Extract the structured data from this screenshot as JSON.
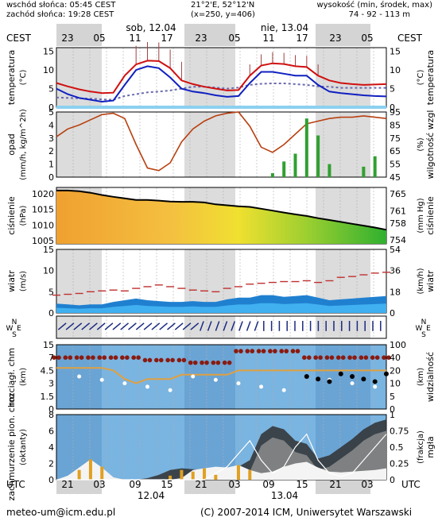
{
  "header": {
    "sunrise": "wschód słońca: 05:45 CEST",
    "sunset": "zachód słońca: 19:28 CEST",
    "coords": "21°2'E, 52°12'N",
    "grid": "(x=250, y=406)",
    "altitude_label": "wysokość (min, środek, max)",
    "altitude_values": "74 - 92 - 113 m"
  },
  "timebar": {
    "tz_left": "CEST",
    "tz_right": "CEST",
    "day1": "sob, 12.04",
    "day2": "nie, 13.04",
    "top_hours": [
      "23",
      "05",
      "11",
      "17",
      "23",
      "05",
      "11",
      "17",
      "23",
      "05"
    ],
    "bottom_tz": "UTC",
    "bottom_hours": [
      "21",
      "03",
      "09",
      "15",
      "21",
      "03",
      "09",
      "15",
      "21",
      "03"
    ],
    "bottom_day1": "12.04",
    "bottom_day2": "13.04"
  },
  "panels": {
    "temperature": {
      "label_left": "temperatura",
      "unit_left": "(°C)",
      "label_right": "temperatura",
      "unit_right": "(°C)"
    },
    "precip": {
      "label_left": "opad",
      "unit_left": "(mm/h, kg/m^2h)",
      "label_right": "wilgotność wzgl",
      "unit_right": "(%)"
    },
    "pressure": {
      "label_left": "ciśnienie",
      "unit_left": "(hPa)",
      "label_right": "ciśnienie",
      "unit_right": "(mm Hg)"
    },
    "wind": {
      "label_left": "wiatr",
      "unit_left": "(m/s)",
      "label_right": "wiatr",
      "unit_right": "(km/h)"
    },
    "direction": {
      "label_left": "W S N E",
      "label_right": "W S N E"
    },
    "visibility": {
      "label_left": "rozciągł. chm",
      "unit_left": "(km)",
      "label_right": "widzialność",
      "unit_right": "(km)"
    },
    "cloud": {
      "label_left": "zachmurzenie pion. chm",
      "unit_left": "(oktanty)",
      "label_right": "mgła",
      "unit_right": "(frakcja)"
    }
  },
  "footer": {
    "email": "meteo-um@icm.edu.pl",
    "copyright": "(C) 2007-2014 ICM, Uniwersytet Warszawski"
  },
  "chart_data": [
    {
      "type": "line",
      "title": "temperatura",
      "ylabel": "temperatura (°C)",
      "ylim": [
        0,
        16
      ],
      "yticks": [
        0,
        5,
        10,
        15
      ],
      "x_hours_utc": [
        19,
        21,
        23,
        1,
        3,
        5,
        7,
        9,
        11,
        13,
        15,
        17,
        19,
        21,
        23,
        1,
        3,
        5,
        7,
        9,
        11,
        13,
        15,
        17,
        19,
        21,
        23,
        1,
        3,
        5
      ],
      "series": [
        {
          "values": [
            6.5,
            5.6,
            4.8,
            4.2,
            3.8,
            3.9,
            8.5,
            11.5,
            12.5,
            12.4,
            10.5,
            7.2,
            6.2,
            5.5,
            5.0,
            4.5,
            4.6,
            8.5,
            11.2,
            11.8,
            11.6,
            11.0,
            10.8,
            8.5,
            7.2,
            6.5,
            6.2,
            6.0,
            6.1,
            6.2
          ],
          "color": "#d01010"
        },
        {
          "values": [
            5.0,
            3.5,
            2.5,
            2.0,
            1.5,
            1.8,
            6.0,
            10.0,
            11.0,
            10.5,
            8.0,
            5.0,
            4.2,
            3.8,
            3.2,
            2.8,
            3.0,
            6.5,
            9.5,
            9.5,
            9.0,
            8.5,
            8.5,
            6.0,
            4.2,
            3.8,
            3.5,
            3.2,
            3.0,
            2.9
          ],
          "color": "#1020c0"
        },
        {
          "values": [
            2.6,
            2.5,
            2.4,
            2.3,
            2.1,
            2.0,
            3.0,
            3.5,
            4.0,
            4.2,
            4.5,
            5.0,
            5.5,
            5.5,
            5.3,
            5.0,
            5.3,
            6.0,
            6.3,
            6.4,
            6.4,
            6.2,
            6.0,
            5.6,
            5.5,
            5.2,
            5.2,
            5.2,
            5.2,
            5.2
          ],
          "color": "#6a6ab0"
        }
      ]
    },
    {
      "type": "line",
      "title": "opad",
      "ylabel": "opad (mm/h, kg/m^2h)",
      "ylim": [
        0,
        5
      ],
      "yticks": [
        0,
        1,
        2,
        3,
        4,
        5
      ],
      "y2ticks": [
        45,
        55,
        65,
        75,
        85,
        95
      ],
      "series": [
        {
          "values": [
            76,
            82,
            85,
            89,
            93,
            94,
            90,
            70,
            52,
            50,
            56,
            72,
            82,
            88,
            92,
            94,
            95,
            84,
            68,
            64,
            70,
            78,
            86,
            88,
            90,
            91,
            91,
            92,
            91,
            90
          ],
          "color": "#b84010"
        }
      ]
    },
    {
      "type": "area",
      "title": "ciśnienie",
      "ylabel": "ciśnienie (hPa)",
      "ylim": [
        1004,
        1022
      ],
      "yticks": [
        1005,
        1010,
        1015,
        1020
      ],
      "y2ticks": [
        754,
        758,
        761,
        765
      ],
      "series": [
        {
          "values": [
            1021,
            1021,
            1020.8,
            1020.3,
            1019.6,
            1019,
            1018.5,
            1018,
            1018,
            1017.8,
            1017.5,
            1017.4,
            1017.4,
            1017.2,
            1016.6,
            1016.3,
            1016,
            1015.8,
            1015.2,
            1014.6,
            1014,
            1013.4,
            1012.9,
            1012.2,
            1011.6,
            1011,
            1010.4,
            1009.8,
            1009.2,
            1008.5
          ],
          "color": "#000000"
        }
      ]
    },
    {
      "type": "line",
      "title": "wiatr",
      "ylabel": "wiatr (m/s)",
      "ylim": [
        0,
        15
      ],
      "yticks": [
        0,
        5,
        10,
        15
      ],
      "y2ticks": [
        0,
        18,
        36,
        54
      ],
      "series": [
        {
          "values": [
            4.2,
            4.4,
            4.6,
            5.0,
            5.2,
            5.4,
            5.2,
            5.8,
            6.2,
            6.6,
            6.2,
            5.8,
            5.4,
            5.2,
            5.0,
            5.8,
            6.2,
            6.8,
            7.0,
            7.2,
            7.4,
            7.4,
            7.6,
            7.2,
            7.6,
            8.4,
            8.6,
            9.0,
            9.4,
            9.6
          ],
          "color": "#c03030"
        },
        {
          "values": [
            2.2,
            2.0,
            1.8,
            2.0,
            2.0,
            2.6,
            3.0,
            3.4,
            3.0,
            2.8,
            2.6,
            2.6,
            2.8,
            2.6,
            2.6,
            3.2,
            3.6,
            3.6,
            4.2,
            4.2,
            3.8,
            4.0,
            4.2,
            3.6,
            3.0,
            3.2,
            3.4,
            3.6,
            3.8,
            4.0
          ],
          "color": "#1060c0"
        }
      ]
    },
    {
      "type": "scatter",
      "title": "widzialność",
      "ylabel": "rozciągł. chm (km)",
      "ylim": [
        0,
        15
      ],
      "yticks": [
        0,
        1.5,
        3.0,
        4.5,
        7.0,
        15.0
      ],
      "y2ticks": [
        0,
        5,
        10,
        20,
        40,
        100
      ],
      "series": [
        {
          "values": [
            7,
            7,
            7,
            7,
            7,
            7,
            7,
            7,
            6.5,
            6.5,
            6.5,
            6.5,
            6,
            6,
            6,
            6,
            11,
            11,
            11,
            11,
            11,
            11,
            7,
            7,
            7,
            7,
            7,
            7,
            7,
            7
          ],
          "color": "#8b1a10"
        },
        {
          "values": [
            5,
            5,
            5,
            5,
            5,
            4.5,
            3.5,
            3,
            3.5,
            3.5,
            3.5,
            4,
            4,
            4,
            4,
            4,
            4.5,
            4.5,
            4.5,
            4.5,
            4.5,
            4.5,
            4.5,
            4.5,
            4.5,
            4.5,
            4.5,
            4.5,
            4.5,
            4.5
          ],
          "color": "#e0a040"
        }
      ]
    },
    {
      "type": "area",
      "title": "zachmurzenie",
      "ylabel": "zachmurzenie pion. chm (oktanty)",
      "ylim": [
        0,
        8
      ],
      "yticks": [
        0,
        2,
        4,
        6,
        8
      ],
      "y2ticks": [
        0,
        0.25,
        0.5,
        0.75,
        1
      ],
      "series": [
        {
          "values": [
            0,
            0.5,
            1.5,
            2.5,
            1.5,
            0.3,
            0,
            0,
            0,
            0,
            0,
            0.2,
            1.2,
            1.4,
            1.6,
            1.5,
            1.8,
            1.2,
            0.8,
            1.0,
            1.6,
            2.0,
            2.2,
            1.5,
            1.0,
            0.9,
            1.0,
            1.1,
            1.2,
            1.4
          ],
          "color": "#808080"
        },
        {
          "values": [
            0,
            0,
            0.2,
            0.6,
            0.8,
            0.3,
            0,
            0,
            0.2,
            0.6,
            1.2,
            1.4,
            1.3,
            1.2,
            1.0,
            1.1,
            1.6,
            2.4,
            5.6,
            6.6,
            6.2,
            4.8,
            4.4,
            2.6,
            3.0,
            4.0,
            5.0,
            6.2,
            7.0,
            7.4
          ],
          "color": "#303030"
        }
      ]
    }
  ]
}
